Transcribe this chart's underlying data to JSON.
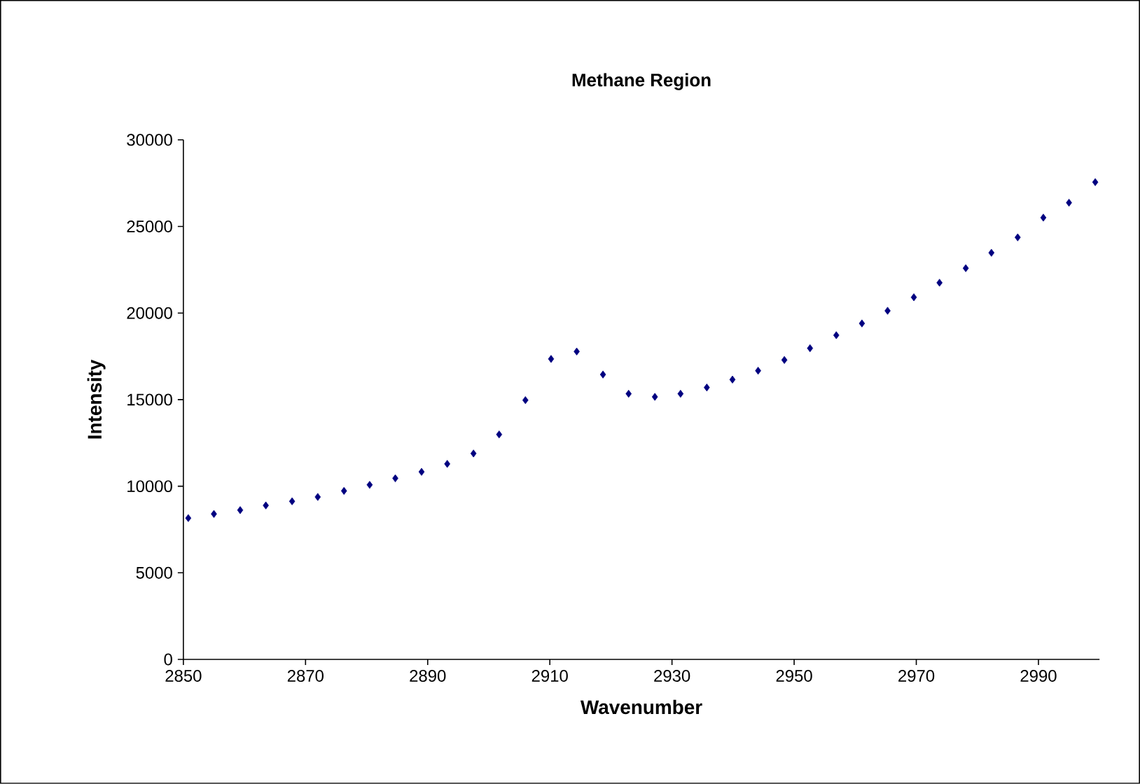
{
  "chart_data": {
    "type": "scatter",
    "title": "Methane Region",
    "xlabel": "Wavenumber",
    "ylabel": "Intensity",
    "x": [
      2850.8,
      2855.0,
      2859.3,
      2863.5,
      2867.8,
      2872.0,
      2876.3,
      2880.5,
      2884.7,
      2889.0,
      2893.2,
      2897.5,
      2901.7,
      2906.0,
      2910.2,
      2914.4,
      2918.7,
      2922.9,
      2927.2,
      2931.4,
      2935.7,
      2939.9,
      2944.1,
      2948.4,
      2952.6,
      2956.9,
      2961.1,
      2965.3,
      2969.6,
      2973.8,
      2978.1,
      2982.3,
      2986.6,
      2990.8,
      2995.0,
      2999.3
    ],
    "values": [
      8160,
      8400,
      8620,
      8890,
      9130,
      9380,
      9730,
      10080,
      10460,
      10830,
      11290,
      11890,
      12990,
      14970,
      17350,
      17780,
      16450,
      15340,
      15160,
      15340,
      15700,
      16160,
      16670,
      17290,
      17970,
      18720,
      19400,
      20130,
      20910,
      21750,
      22590,
      23480,
      24370,
      25510,
      26370,
      27560
    ],
    "color": "#000080",
    "marker": "diamond",
    "xlim": [
      2850,
      3000
    ],
    "xticks": [
      2850,
      2870,
      2890,
      2910,
      2930,
      2950,
      2970,
      2990
    ],
    "ylim": [
      0,
      30000
    ],
    "yticks": [
      0,
      5000,
      10000,
      15000,
      20000,
      25000,
      30000
    ]
  }
}
